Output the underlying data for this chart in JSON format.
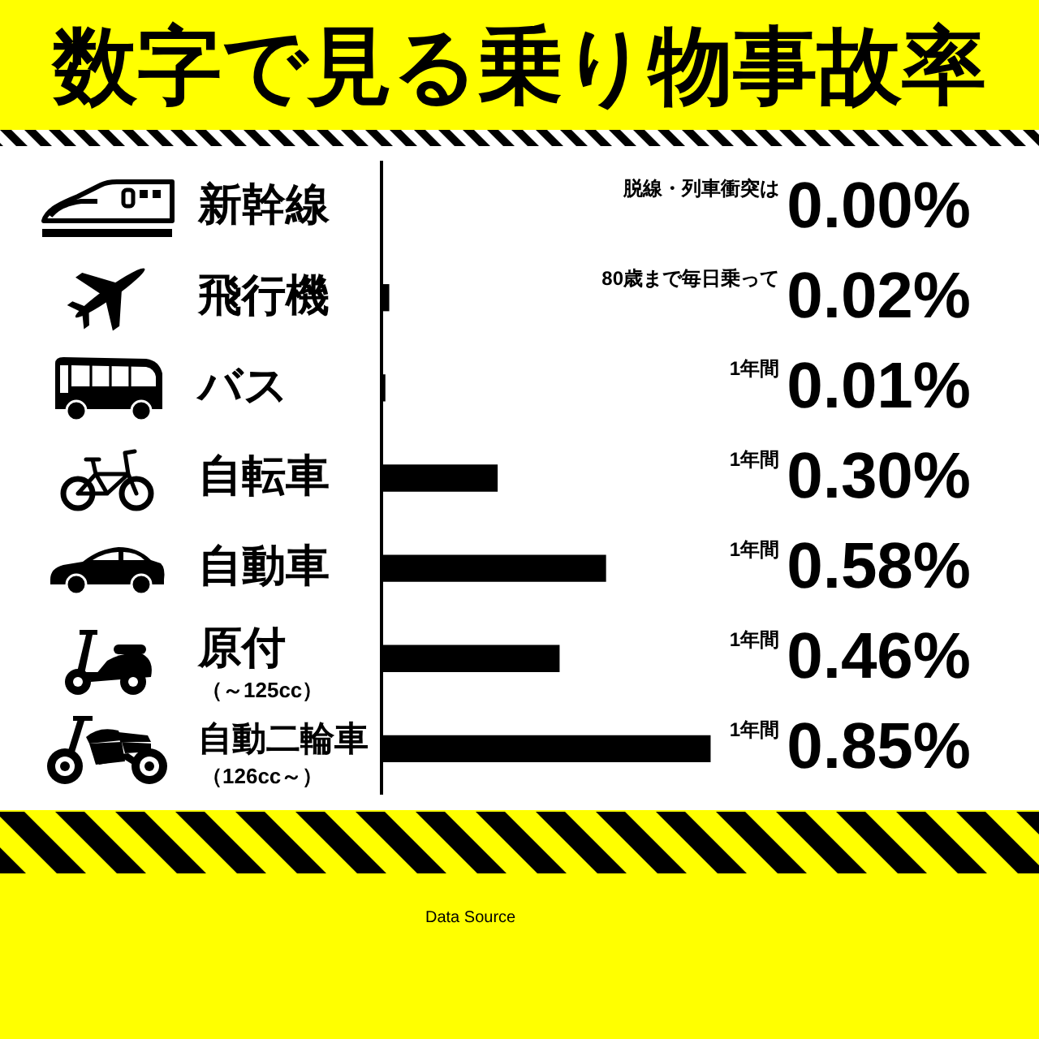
{
  "chart_data": {
    "type": "bar",
    "orientation": "horizontal",
    "title": "数字で見る乗り物事故率",
    "categories": [
      "新幹線",
      "飛行機",
      "バス",
      "自転車",
      "自動車",
      "原付（～125cc）",
      "自動二輪車（126cc～）"
    ],
    "values": [
      0,
      0.02,
      0.01,
      0.3,
      0.58,
      0.46,
      0.85
    ],
    "value_labels": [
      "0.00%",
      "0.02%",
      "0.01%",
      "0.30%",
      "0.58%",
      "0.46%",
      "0.85%"
    ],
    "color": "#000000",
    "tick_labels": "y",
    "annotations": [
      "脱線・列車衝突は",
      "80歳まで毎日乗って",
      "1年間",
      "1年間",
      "1年間",
      "1年間",
      "1年間",
      "Data Source"
    ]
  }
}
